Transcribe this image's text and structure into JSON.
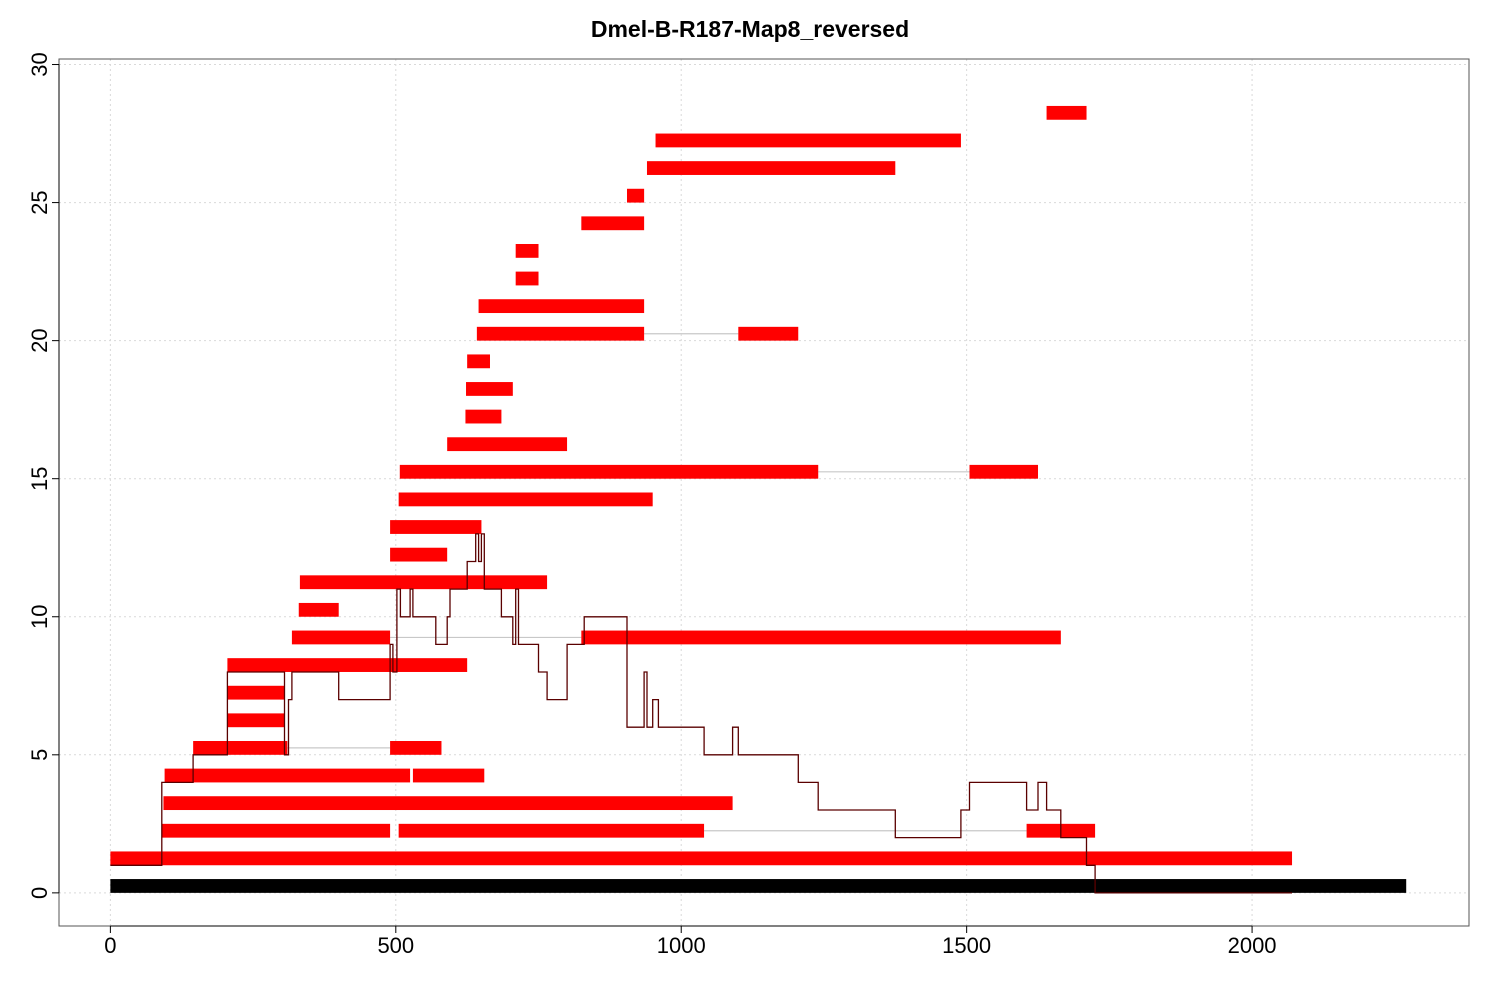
{
  "chart_data": {
    "type": "bar",
    "title": "Dmel-B-R187-Map8_reversed",
    "xlabel": "",
    "ylabel": "",
    "xlim": [
      -90,
      2380
    ],
    "ylim": [
      -1.2,
      30.2
    ],
    "x_ticks": [
      0,
      500,
      1000,
      1500,
      2000
    ],
    "y_ticks": [
      0,
      5,
      10,
      15,
      20,
      25,
      30
    ],
    "grid": true,
    "colors": {
      "segment": "#ff0000",
      "reference": "#000000",
      "coverage": "#5a0000",
      "link": "#c8c8c8",
      "grid": "#d9d9d9"
    },
    "reference_bar": {
      "y": 0.25,
      "start": 0,
      "end": 2270
    },
    "segments": [
      {
        "y": 1.25,
        "start": 0,
        "end": 2070
      },
      {
        "y": 2.25,
        "start": 90,
        "end": 490
      },
      {
        "y": 2.25,
        "start": 505,
        "end": 1040
      },
      {
        "y": 2.25,
        "start": 1605,
        "end": 1725
      },
      {
        "y": 3.25,
        "start": 93,
        "end": 1090
      },
      {
        "y": 4.25,
        "start": 95,
        "end": 525
      },
      {
        "y": 4.25,
        "start": 530,
        "end": 655
      },
      {
        "y": 5.25,
        "start": 145,
        "end": 310
      },
      {
        "y": 5.25,
        "start": 490,
        "end": 580
      },
      {
        "y": 6.25,
        "start": 205,
        "end": 305
      },
      {
        "y": 7.25,
        "start": 205,
        "end": 305
      },
      {
        "y": 8.25,
        "start": 205,
        "end": 625
      },
      {
        "y": 9.25,
        "start": 318,
        "end": 490
      },
      {
        "y": 9.25,
        "start": 825,
        "end": 1665
      },
      {
        "y": 10.25,
        "start": 330,
        "end": 400
      },
      {
        "y": 11.25,
        "start": 332,
        "end": 765
      },
      {
        "y": 12.25,
        "start": 490,
        "end": 590
      },
      {
        "y": 13.25,
        "start": 490,
        "end": 650
      },
      {
        "y": 14.25,
        "start": 505,
        "end": 950
      },
      {
        "y": 15.25,
        "start": 507,
        "end": 1240
      },
      {
        "y": 15.25,
        "start": 1505,
        "end": 1625
      },
      {
        "y": 16.25,
        "start": 590,
        "end": 800
      },
      {
        "y": 17.25,
        "start": 622,
        "end": 685
      },
      {
        "y": 18.25,
        "start": 623,
        "end": 705
      },
      {
        "y": 19.25,
        "start": 625,
        "end": 665
      },
      {
        "y": 20.25,
        "start": 642,
        "end": 935
      },
      {
        "y": 20.25,
        "start": 1100,
        "end": 1205
      },
      {
        "y": 21.25,
        "start": 645,
        "end": 935
      },
      {
        "y": 22.25,
        "start": 710,
        "end": 750
      },
      {
        "y": 23.25,
        "start": 710,
        "end": 750
      },
      {
        "y": 24.25,
        "start": 825,
        "end": 935
      },
      {
        "y": 25.25,
        "start": 905,
        "end": 935
      },
      {
        "y": 26.25,
        "start": 940,
        "end": 1375
      },
      {
        "y": 27.25,
        "start": 955,
        "end": 1490
      },
      {
        "y": 28.25,
        "start": 1640,
        "end": 1710
      }
    ],
    "links": [
      {
        "y": 2.25,
        "start": 1040,
        "end": 1605
      },
      {
        "y": 5.25,
        "start": 310,
        "end": 490
      },
      {
        "y": 9.25,
        "start": 490,
        "end": 825
      },
      {
        "y": 15.25,
        "start": 1240,
        "end": 1505
      },
      {
        "y": 20.25,
        "start": 935,
        "end": 1100
      }
    ],
    "coverage_line": {
      "x": [
        0,
        90,
        90,
        145,
        145,
        205,
        205,
        305,
        305,
        312,
        312,
        318,
        318,
        330,
        330,
        335,
        335,
        400,
        400,
        490,
        490,
        495,
        495,
        502,
        502,
        508,
        508,
        525,
        525,
        530,
        530,
        570,
        570,
        590,
        590,
        595,
        595,
        625,
        625,
        640,
        640,
        645,
        645,
        650,
        650,
        655,
        655,
        665,
        665,
        685,
        685,
        705,
        705,
        710,
        710,
        715,
        715,
        750,
        750,
        765,
        765,
        800,
        800,
        825,
        825,
        830,
        830,
        905,
        905,
        935,
        935,
        940,
        940,
        950,
        950,
        955,
        955,
        960,
        960,
        1040,
        1040,
        1090,
        1090,
        1100,
        1100,
        1205,
        1205,
        1240,
        1240,
        1375,
        1375,
        1490,
        1490,
        1500,
        1500,
        1505,
        1505,
        1605,
        1605,
        1625,
        1625,
        1640,
        1640,
        1665,
        1665,
        1710,
        1710,
        1725,
        1725,
        2070,
        2070
      ],
      "y": [
        1,
        1,
        4,
        4,
        5,
        5,
        8,
        8,
        5,
        5,
        7,
        7,
        8,
        8,
        8,
        8,
        8,
        8,
        7,
        7,
        9,
        9,
        8,
        8,
        11,
        11,
        10,
        10,
        11,
        11,
        10,
        10,
        9,
        9,
        10,
        10,
        11,
        11,
        12,
        12,
        13,
        13,
        12,
        12,
        13,
        13,
        11,
        11,
        11,
        11,
        10,
        10,
        9,
        9,
        11,
        11,
        9,
        9,
        8,
        8,
        7,
        7,
        9,
        9,
        9,
        9,
        10,
        10,
        6,
        6,
        8,
        8,
        6,
        6,
        7,
        7,
        7,
        7,
        6,
        6,
        5,
        5,
        6,
        6,
        5,
        5,
        4,
        4,
        3,
        3,
        2,
        2,
        3,
        3,
        3,
        3,
        4,
        4,
        3,
        3,
        4,
        4,
        3,
        3,
        2,
        2,
        1,
        1,
        0,
        0,
        0
      ]
    }
  }
}
